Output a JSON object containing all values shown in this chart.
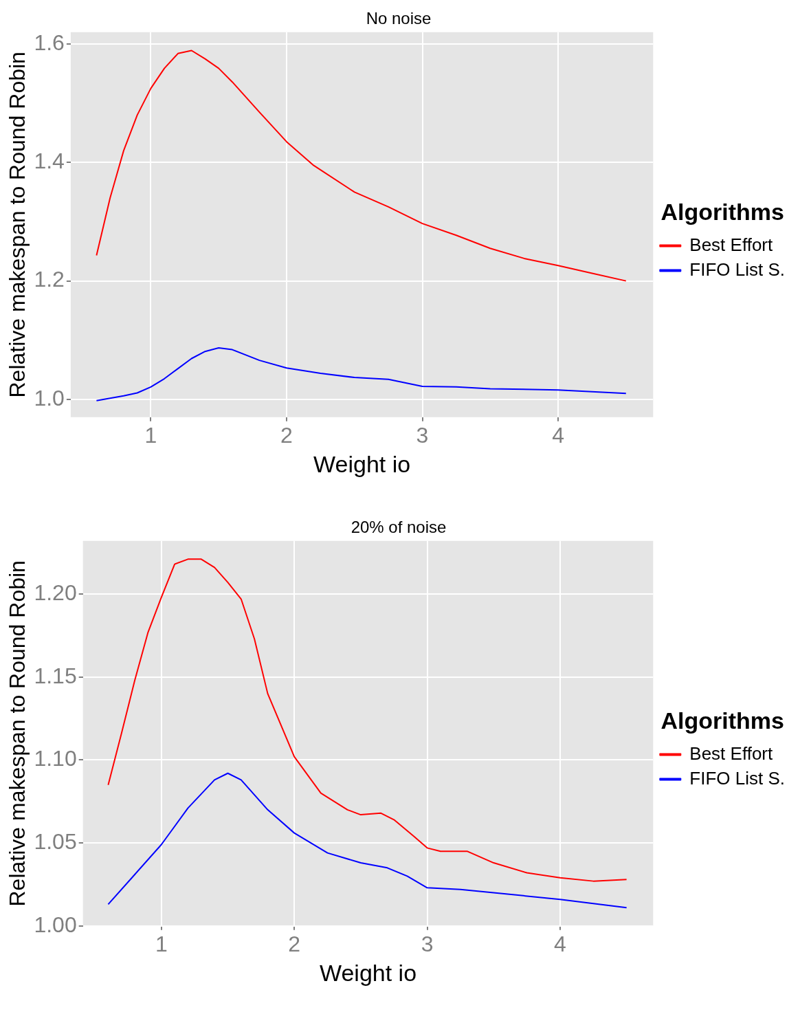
{
  "chart_data": [
    {
      "type": "line",
      "title": "No noise",
      "xlabel": "Weight io",
      "ylabel": "Relative makespan to Round Robin",
      "legend_title": "Algorithms",
      "legend": "right",
      "grid": true,
      "xlim": [
        0.41,
        4.7
      ],
      "xticks": [
        1,
        2,
        3,
        4
      ],
      "ylim": [
        0.97,
        1.62
      ],
      "yticks": [
        {
          "value": 1.0,
          "label": "1.0"
        },
        {
          "value": 1.2,
          "label": "1.2"
        },
        {
          "value": 1.4,
          "label": "1.4"
        },
        {
          "value": 1.6,
          "label": "1.6"
        }
      ],
      "series": [
        {
          "name": "Best Effort",
          "color": "#ff0000",
          "x": [
            0.6,
            0.7,
            0.8,
            0.9,
            1.0,
            1.1,
            1.2,
            1.3,
            1.4,
            1.5,
            1.6,
            1.8,
            2.0,
            2.2,
            2.5,
            2.75,
            3.0,
            3.25,
            3.5,
            3.75,
            4.0,
            4.25,
            4.5
          ],
          "values": [
            1.243,
            1.34,
            1.42,
            1.48,
            1.525,
            1.559,
            1.584,
            1.589,
            1.575,
            1.559,
            1.536,
            1.485,
            1.435,
            1.395,
            1.35,
            1.325,
            1.297,
            1.277,
            1.255,
            1.238,
            1.226,
            1.213,
            1.2
          ]
        },
        {
          "name": "FIFO List S.",
          "color": "#0000ff",
          "x": [
            0.6,
            0.8,
            0.9,
            1.0,
            1.1,
            1.2,
            1.3,
            1.4,
            1.5,
            1.6,
            1.8,
            2.0,
            2.25,
            2.5,
            2.75,
            3.0,
            3.25,
            3.5,
            4.0,
            4.5
          ],
          "values": [
            0.998,
            1.006,
            1.011,
            1.021,
            1.035,
            1.052,
            1.069,
            1.081,
            1.087,
            1.084,
            1.066,
            1.053,
            1.044,
            1.037,
            1.034,
            1.022,
            1.021,
            1.018,
            1.016,
            1.01
          ]
        }
      ]
    },
    {
      "type": "line",
      "title": "20% of noise",
      "xlabel": "Weight io",
      "ylabel": "Relative makespan to Round Robin",
      "legend_title": "Algorithms",
      "legend": "right",
      "grid": true,
      "xlim": [
        0.41,
        4.7
      ],
      "xticks": [
        1,
        2,
        3,
        4
      ],
      "ylim": [
        1.0,
        1.232
      ],
      "yticks": [
        {
          "value": 1.0,
          "label": "1.00"
        },
        {
          "value": 1.05,
          "label": "1.05"
        },
        {
          "value": 1.1,
          "label": "1.10"
        },
        {
          "value": 1.15,
          "label": "1.15"
        },
        {
          "value": 1.2,
          "label": "1.20"
        }
      ],
      "series": [
        {
          "name": "Best Effort",
          "color": "#ff0000",
          "x": [
            0.6,
            0.7,
            0.8,
            0.9,
            1.0,
            1.1,
            1.2,
            1.3,
            1.4,
            1.5,
            1.6,
            1.7,
            1.8,
            2.0,
            2.2,
            2.4,
            2.5,
            2.65,
            2.75,
            2.9,
            3.0,
            3.1,
            3.3,
            3.5,
            3.75,
            4.0,
            4.25,
            4.5
          ],
          "values": [
            1.085,
            1.116,
            1.148,
            1.177,
            1.198,
            1.218,
            1.221,
            1.221,
            1.216,
            1.207,
            1.197,
            1.173,
            1.14,
            1.102,
            1.08,
            1.07,
            1.067,
            1.068,
            1.064,
            1.054,
            1.047,
            1.045,
            1.045,
            1.038,
            1.032,
            1.029,
            1.027,
            1.028
          ]
        },
        {
          "name": "FIFO List S.",
          "color": "#0000ff",
          "x": [
            0.6,
            0.8,
            1.0,
            1.2,
            1.4,
            1.5,
            1.6,
            1.8,
            2.0,
            2.25,
            2.5,
            2.7,
            2.85,
            3.0,
            3.25,
            3.5,
            4.0,
            4.5
          ],
          "values": [
            1.013,
            1.031,
            1.049,
            1.071,
            1.088,
            1.092,
            1.088,
            1.07,
            1.056,
            1.044,
            1.038,
            1.035,
            1.03,
            1.023,
            1.022,
            1.02,
            1.016,
            1.011
          ]
        }
      ]
    }
  ]
}
